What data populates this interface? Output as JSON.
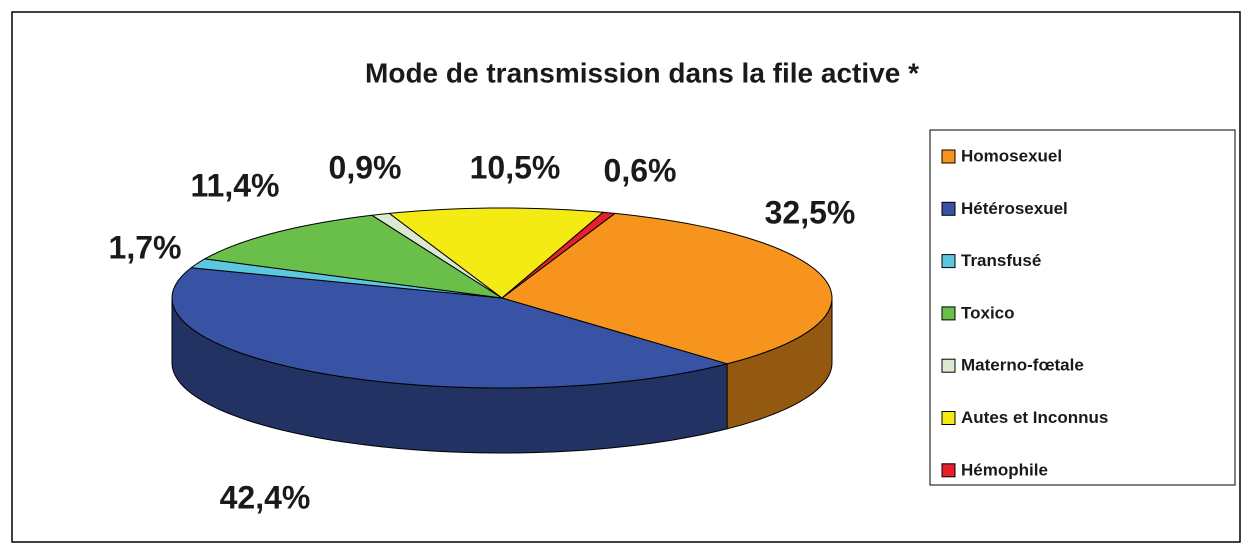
{
  "chart_data": {
    "type": "pie3d",
    "title": "Mode de transmission dans la file active  *",
    "categories": [
      "Homosexuel",
      "Hétérosexuel",
      "Transfusé",
      "Toxico",
      "Materno-fœtale",
      "Autes et Inconnus",
      "Hémophile"
    ],
    "values": [
      32.5,
      42.4,
      1.7,
      11.4,
      0.9,
      10.5,
      0.6
    ],
    "value_labels": [
      "32,5%",
      "42,4%",
      "1,7%",
      "11,4%",
      "0,9%",
      "10,5%",
      "0,6%"
    ],
    "colors": [
      "#f7941d",
      "#3953a4",
      "#5bc8e0",
      "#6abf4b",
      "#dbe9d0",
      "#f5eb14",
      "#e8202a"
    ],
    "legend": "right"
  }
}
